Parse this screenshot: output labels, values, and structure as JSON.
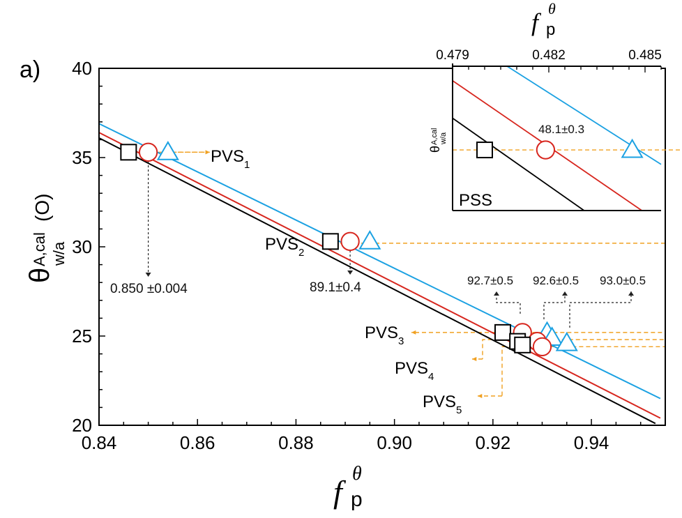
{
  "panel_label": "a)",
  "colors": {
    "black": "#000000",
    "red": "#d7261e",
    "blue": "#1ba1e2",
    "orange": "#f0a020",
    "guide": "#222222"
  },
  "chart_data": {
    "type": "line",
    "x": {
      "symbol": "f",
      "sub": "p",
      "sup": "θ",
      "lim": [
        0.84,
        0.955
      ],
      "ticks": [
        0.84,
        0.86,
        0.88,
        0.9,
        0.92,
        0.94
      ],
      "tick_labels": [
        "0.84",
        "0.86",
        "0.88",
        "0.90",
        "0.92",
        "0.94"
      ]
    },
    "y": {
      "symbol": "θ",
      "sup": "A,cal",
      "sub": "w/a",
      "unit": "(O)",
      "lim": [
        20,
        40
      ],
      "ticks": [
        20,
        25,
        30,
        35,
        40
      ],
      "tick_labels": [
        "20",
        "25",
        "30",
        "35",
        "40"
      ]
    },
    "series": [
      {
        "name": "black",
        "color": "#000000",
        "points": [
          [
            0.84,
            36.1
          ],
          [
            0.953,
            20.1
          ]
        ]
      },
      {
        "name": "red",
        "color": "#d7261e",
        "points": [
          [
            0.84,
            36.4
          ],
          [
            0.954,
            20.4
          ]
        ]
      },
      {
        "name": "blue",
        "color": "#1ba1e2",
        "points": [
          [
            0.84,
            36.9
          ],
          [
            0.954,
            21.5
          ]
        ]
      }
    ],
    "markers": [
      {
        "label": "PVS1",
        "marker": "square",
        "x": 0.846,
        "y": 35.3
      },
      {
        "label": "PVS1",
        "marker": "circle",
        "x": 0.85,
        "y": 35.3
      },
      {
        "label": "PVS1",
        "marker": "triangle",
        "x": 0.854,
        "y": 35.3
      },
      {
        "label": "PVS2",
        "marker": "square",
        "x": 0.887,
        "y": 30.3
      },
      {
        "label": "PVS2",
        "marker": "circle",
        "x": 0.891,
        "y": 30.3
      },
      {
        "label": "PVS2",
        "marker": "triangle",
        "x": 0.895,
        "y": 30.3
      },
      {
        "label": "PVS3",
        "marker": "square",
        "x": 0.922,
        "y": 25.2
      },
      {
        "label": "PVS3",
        "marker": "circle",
        "x": 0.926,
        "y": 25.2
      },
      {
        "label": "PVS3",
        "marker": "triangle",
        "x": 0.931,
        "y": 25.2
      },
      {
        "label": "PVS4",
        "marker": "square",
        "x": 0.925,
        "y": 24.7
      },
      {
        "label": "PVS4",
        "marker": "circle",
        "x": 0.929,
        "y": 24.7
      },
      {
        "label": "PVS4",
        "marker": "triangle",
        "x": 0.932,
        "y": 24.9
      },
      {
        "label": "PVS5",
        "marker": "square",
        "x": 0.926,
        "y": 24.5
      },
      {
        "label": "PVS5",
        "marker": "circle",
        "x": 0.93,
        "y": 24.4
      },
      {
        "label": "PVS5",
        "marker": "triangle",
        "x": 0.935,
        "y": 24.6
      }
    ],
    "pvs_labels": [
      {
        "name": "PVS",
        "sub": "1"
      },
      {
        "name": "PVS",
        "sub": "2"
      },
      {
        "name": "PVS",
        "sub": "3"
      },
      {
        "name": "PVS",
        "sub": "4"
      },
      {
        "name": "PVS",
        "sub": "5"
      }
    ],
    "annotations": [
      {
        "text": "0.850 ±0.004"
      },
      {
        "text": "89.1±0.4"
      },
      {
        "text": "92.7±0.5"
      },
      {
        "text": "92.6±0.5"
      },
      {
        "text": "93.0±0.5"
      }
    ],
    "inset": {
      "label": "PSS",
      "value_label": "48.1±0.3",
      "x_ticks": [
        0.479,
        0.482,
        0.485
      ],
      "x_tick_labels": [
        "0.479",
        "0.482",
        "0.485"
      ],
      "x_lim": [
        0.479,
        0.4855
      ],
      "y_symbol": "θ",
      "y_sup": "A,cal",
      "y_sub": "w/a",
      "y_ref": 48.1,
      "y_lim": [
        46,
        51
      ],
      "markers": [
        {
          "marker": "square",
          "x": 0.48,
          "y": 48.1
        },
        {
          "marker": "circle",
          "x": 0.4819,
          "y": 48.1
        },
        {
          "marker": "triangle",
          "x": 0.4846,
          "y": 48.1
        }
      ],
      "series": [
        {
          "name": "black",
          "color": "#000000",
          "points": [
            [
              0.479,
              49.2
            ],
            [
              0.4831,
              46.0
            ]
          ]
        },
        {
          "name": "red",
          "color": "#d7261e",
          "points": [
            [
              0.479,
              50.5
            ],
            [
              0.4849,
              46.0
            ]
          ]
        },
        {
          "name": "blue",
          "color": "#1ba1e2",
          "points": [
            [
              0.4807,
              51.0
            ],
            [
              0.4855,
              47.6
            ]
          ]
        }
      ]
    }
  }
}
